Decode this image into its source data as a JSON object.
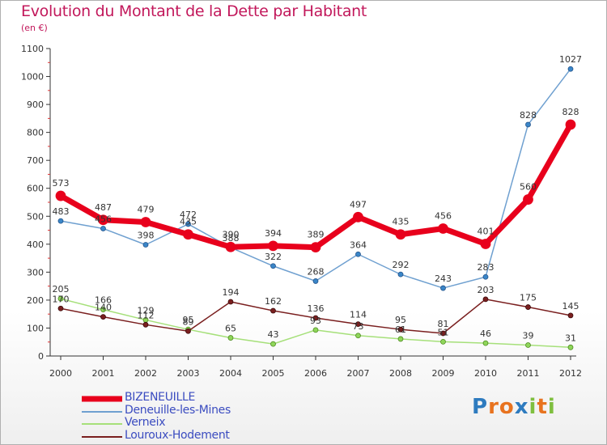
{
  "title": "Evolution du Montant de la Dette par Habitant",
  "unit_label": "(en €)",
  "logo": {
    "text": "Proxiti",
    "letters": [
      "P",
      "r",
      "o",
      "x",
      "i",
      "t",
      "i"
    ],
    "colors": [
      "#2e7bbf",
      "#e8731f",
      "#e8731f",
      "#2e7bbf",
      "#7fbf3f",
      "#e8731f",
      "#7fbf3f"
    ]
  },
  "chart_data": {
    "type": "line",
    "x": [
      "2000",
      "2001",
      "2002",
      "2003",
      "2004",
      "2005",
      "2006",
      "2007",
      "2008",
      "2009",
      "2010",
      "2011",
      "2012"
    ],
    "yticks": [
      "0",
      "100",
      "200",
      "300",
      "400",
      "500",
      "600",
      "700",
      "800",
      "900",
      "1000",
      "1100"
    ],
    "ylim": [
      0,
      1100
    ],
    "grid": false,
    "legend_position": "bottom-left",
    "series": [
      {
        "name": "BIZENEUILLE",
        "color": "#e8001c",
        "values": [
          573,
          487,
          479,
          435,
          390,
          394,
          389,
          497,
          435,
          456,
          401,
          560,
          828
        ],
        "labels": [
          "573",
          "487",
          "479",
          "435",
          "390",
          "394",
          "389",
          "497",
          "435",
          "456",
          "401",
          "560",
          "828"
        ]
      },
      {
        "name": "Deneuille-les-Mines",
        "color": "#6fa0d0",
        "values": [
          483,
          456,
          398,
          472,
          388,
          322,
          268,
          364,
          292,
          243,
          283,
          828,
          1027
        ],
        "labels": [
          "483",
          "456",
          "398",
          "472",
          "388",
          "322",
          "268",
          "364",
          "292",
          "243",
          "283",
          "828",
          "1027"
        ]
      },
      {
        "name": "Verneix",
        "color": "#a6e07a",
        "values": [
          205,
          166,
          129,
          95,
          65,
          43,
          93,
          73,
          61,
          51,
          46,
          39,
          31
        ],
        "labels": [
          "205",
          "166",
          "129",
          "95",
          "65",
          "43",
          "93",
          "73",
          "61",
          "51",
          "46",
          "39",
          "31"
        ]
      },
      {
        "name": "Louroux-Hodement",
        "color": "#7a1f1f",
        "values": [
          170,
          140,
          112,
          89,
          194,
          162,
          136,
          114,
          95,
          81,
          203,
          175,
          145
        ],
        "labels": [
          "170",
          "140",
          "112",
          "89",
          "194",
          "162",
          "136",
          "114",
          "95",
          "81",
          "203",
          "175",
          "145"
        ]
      }
    ]
  }
}
